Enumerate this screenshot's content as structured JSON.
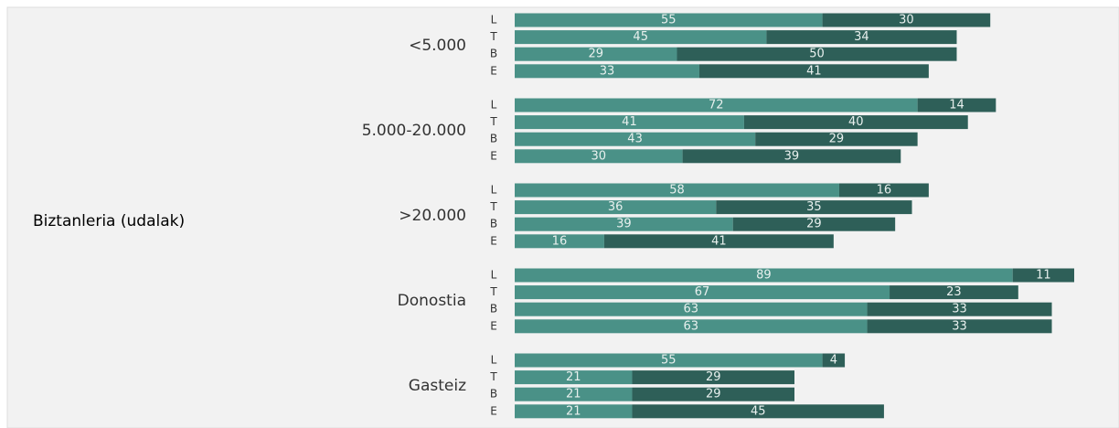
{
  "chart_data": {
    "type": "bar",
    "stacked": true,
    "orientation": "horizontal",
    "title": "Biztanleria (udalak)",
    "groups": [
      {
        "label": "<5.000",
        "categories": [
          "L",
          "T",
          "B",
          "E"
        ]
      },
      {
        "label": "5.000-20.000",
        "categories": [
          "L",
          "T",
          "B",
          "E"
        ]
      },
      {
        "label": ">20.000",
        "categories": [
          "L",
          "T",
          "B",
          "E"
        ]
      },
      {
        "label": "Donostia",
        "categories": [
          "L",
          "T",
          "B",
          "E"
        ]
      },
      {
        "label": "Gasteiz",
        "categories": [
          "L",
          "T",
          "B",
          "E"
        ]
      }
    ],
    "series": [
      {
        "color": "#4a9187",
        "values": [
          55,
          45,
          29,
          33,
          72,
          41,
          43,
          30,
          58,
          36,
          39,
          16,
          89,
          67,
          63,
          63,
          55,
          21,
          21,
          21
        ]
      },
      {
        "color": "#2e5f58",
        "values": [
          30,
          34,
          50,
          41,
          14,
          40,
          29,
          39,
          16,
          35,
          29,
          41,
          11,
          23,
          33,
          33,
          4,
          29,
          29,
          45
        ]
      }
    ],
    "xlim": [
      0,
      100
    ]
  }
}
